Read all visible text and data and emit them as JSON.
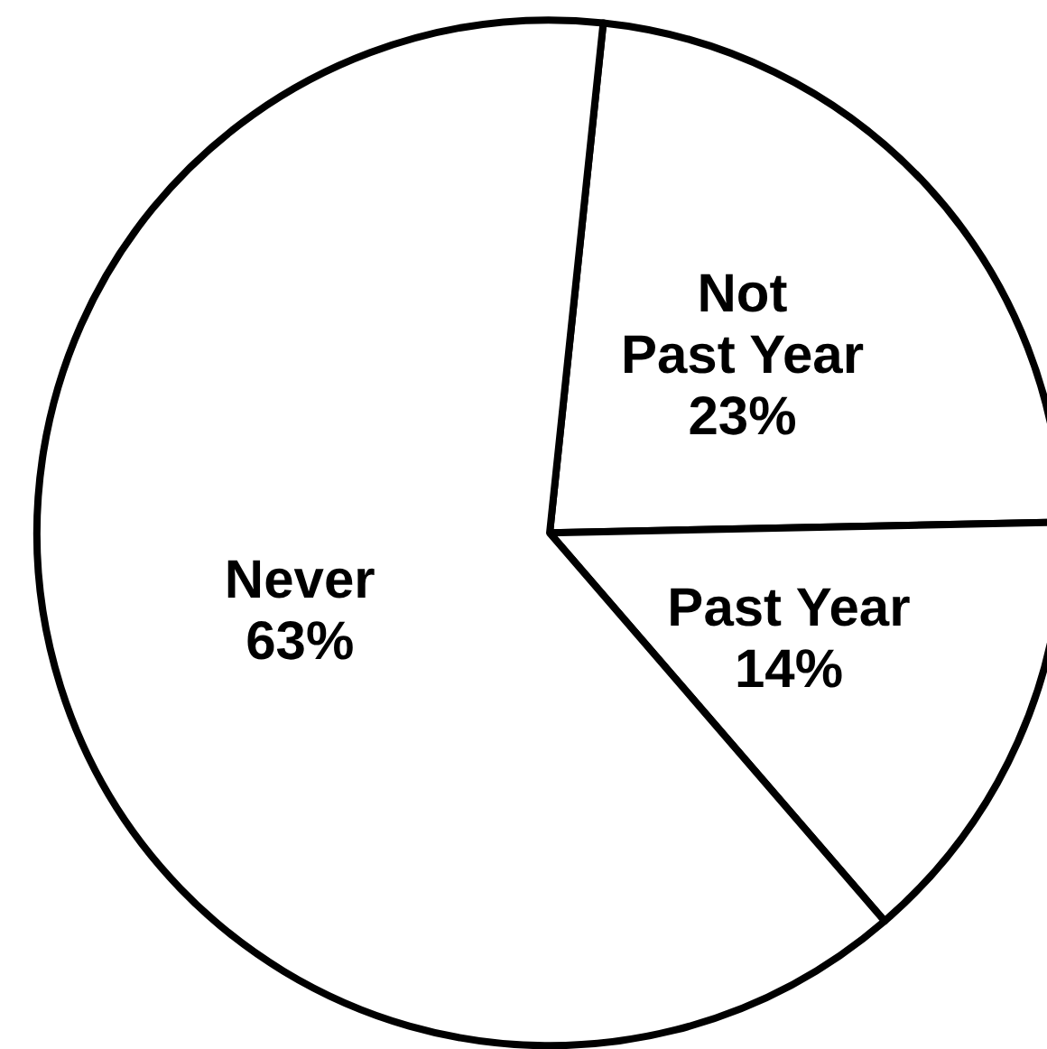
{
  "chart_data": {
    "type": "pie",
    "categories": [
      "Not Past Year",
      "Past Year",
      "Never"
    ],
    "values": [
      23,
      14,
      63
    ],
    "value_labels": [
      "23%",
      "14%",
      "63%"
    ],
    "colors": [
      "#ffffff",
      "#ffffff",
      "#ffffff"
    ]
  }
}
